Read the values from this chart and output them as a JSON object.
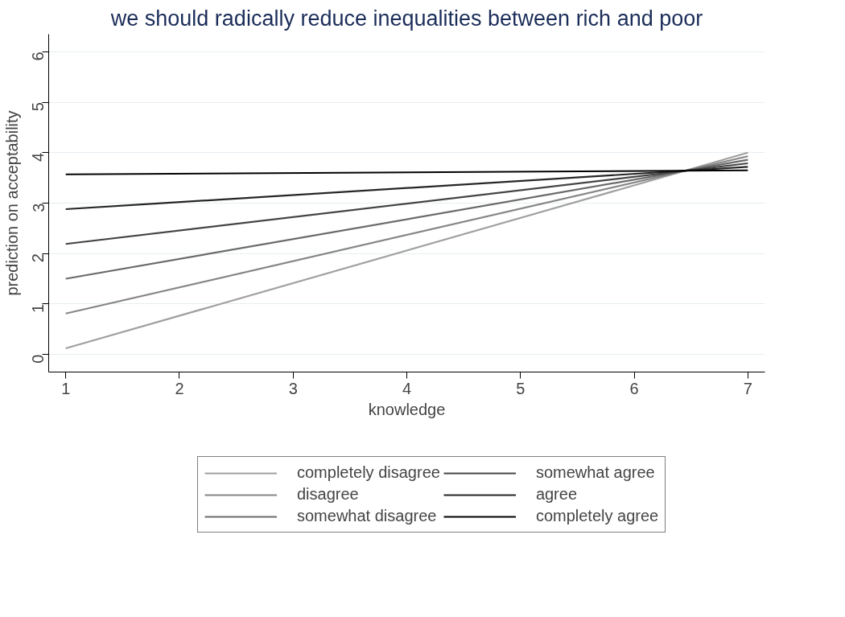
{
  "chart_data": {
    "type": "line",
    "title": "we should radically reduce inequalities between rich and poor",
    "xlabel": "knowledge",
    "ylabel": "prediction on acceptability",
    "x": [
      1,
      7
    ],
    "series": [
      {
        "name": "completely disagree",
        "color": "#a0a0a0",
        "values": [
          0.12,
          4.0
        ]
      },
      {
        "name": "disagree",
        "color": "#868686",
        "values": [
          0.81,
          3.93
        ]
      },
      {
        "name": "somewhat disagree",
        "color": "#6a6a6a",
        "values": [
          1.5,
          3.86
        ]
      },
      {
        "name": "somewhat agree",
        "color": "#444444",
        "values": [
          2.19,
          3.79
        ]
      },
      {
        "name": "agree",
        "color": "#262626",
        "values": [
          2.88,
          3.72
        ]
      },
      {
        "name": "completely agree",
        "color": "#000000",
        "values": [
          3.57,
          3.65
        ]
      }
    ],
    "xlim": [
      0.85,
      7.15
    ],
    "ylim": [
      -0.35,
      6.35
    ],
    "xticks": [
      1,
      2,
      3,
      4,
      5,
      6,
      7
    ],
    "yticks": [
      0,
      1,
      2,
      3,
      4,
      5,
      6
    ],
    "grid": "y",
    "legend": "bottom",
    "marker": "none",
    "line_style": "solid"
  }
}
